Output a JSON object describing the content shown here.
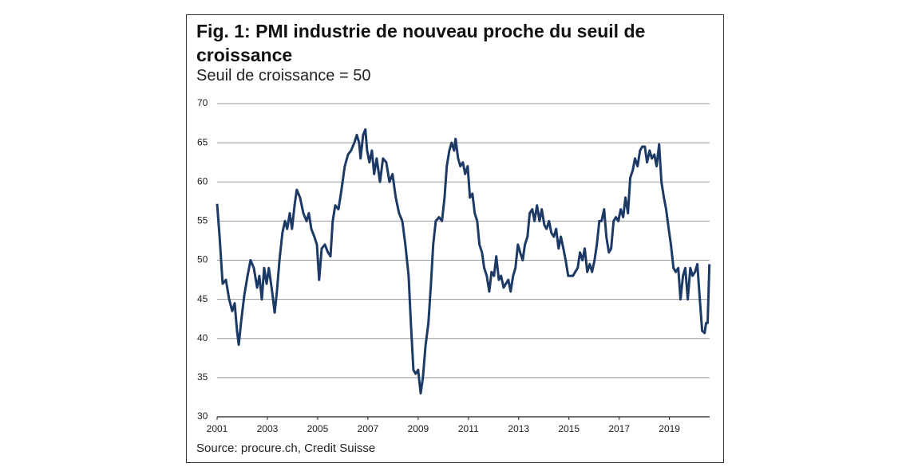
{
  "chart_data": {
    "type": "line",
    "title": "Fig. 1: PMI industrie de nouveau proche du seuil de croissance",
    "subtitle": "Seuil de croissance = 50",
    "source": "Source: procure.ch, Credit Suisse",
    "xlim": [
      2001,
      2020.6
    ],
    "xticks": [
      2001,
      2003,
      2005,
      2007,
      2009,
      2011,
      2013,
      2015,
      2017,
      2019
    ],
    "ylim": [
      30,
      70
    ],
    "yticks": [
      30,
      35,
      40,
      45,
      50,
      55,
      60,
      65,
      70
    ],
    "grid": true,
    "x": [
      2001.0,
      2001.1,
      2001.22,
      2001.35,
      2001.48,
      2001.6,
      2001.7,
      2001.79,
      2001.86,
      2001.95,
      2002.08,
      2002.21,
      2002.33,
      2002.46,
      2002.59,
      2002.68,
      2002.78,
      2002.87,
      2002.97,
      2003.06,
      2003.19,
      2003.29,
      2003.38,
      2003.48,
      2003.6,
      2003.7,
      2003.79,
      2003.89,
      2003.98,
      2004.08,
      2004.17,
      2004.3,
      2004.43,
      2004.56,
      2004.65,
      2004.75,
      2004.87,
      2004.97,
      2005.06,
      2005.16,
      2005.29,
      2005.41,
      2005.51,
      2005.6,
      2005.7,
      2005.83,
      2005.95,
      2006.08,
      2006.21,
      2006.33,
      2006.46,
      2006.56,
      2006.65,
      2006.71,
      2006.81,
      2006.9,
      2006.97,
      2007.06,
      2007.16,
      2007.25,
      2007.35,
      2007.48,
      2007.6,
      2007.73,
      2007.86,
      2007.98,
      2008.11,
      2008.24,
      2008.37,
      2008.49,
      2008.62,
      2008.71,
      2008.81,
      2008.9,
      2009.0,
      2009.1,
      2009.19,
      2009.29,
      2009.41,
      2009.51,
      2009.6,
      2009.7,
      2009.83,
      2009.95,
      2010.05,
      2010.14,
      2010.24,
      2010.33,
      2010.43,
      2010.49,
      2010.59,
      2010.68,
      2010.78,
      2010.87,
      2010.97,
      2011.06,
      2011.16,
      2011.25,
      2011.35,
      2011.44,
      2011.54,
      2011.63,
      2011.73,
      2011.83,
      2011.92,
      2012.02,
      2012.11,
      2012.21,
      2012.3,
      2012.4,
      2012.49,
      2012.59,
      2012.68,
      2012.78,
      2012.87,
      2012.97,
      2013.06,
      2013.16,
      2013.25,
      2013.35,
      2013.44,
      2013.54,
      2013.63,
      2013.73,
      2013.83,
      2013.92,
      2014.02,
      2014.11,
      2014.21,
      2014.3,
      2014.4,
      2014.49,
      2014.59,
      2014.68,
      2014.78,
      2014.87,
      2014.97,
      2015.06,
      2015.16,
      2015.25,
      2015.35,
      2015.44,
      2015.54,
      2015.63,
      2015.73,
      2015.83,
      2015.92,
      2016.02,
      2016.11,
      2016.21,
      2016.3,
      2016.4,
      2016.49,
      2016.59,
      2016.68,
      2016.78,
      2016.87,
      2016.97,
      2017.06,
      2017.16,
      2017.25,
      2017.35,
      2017.44,
      2017.54,
      2017.63,
      2017.73,
      2017.83,
      2017.92,
      2018.02,
      2018.11,
      2018.21,
      2018.3,
      2018.4,
      2018.49,
      2018.59,
      2018.68,
      2018.78,
      2018.87,
      2018.97,
      2019.06,
      2019.16,
      2019.25,
      2019.35,
      2019.44,
      2019.54,
      2019.63,
      2019.73,
      2019.83,
      2019.92,
      2020.02,
      2020.11,
      2020.21,
      2020.3,
      2020.4,
      2020.46,
      2020.52,
      2020.59
    ],
    "series": [
      {
        "color": "#1d3a66",
        "values": [
          57.2,
          53,
          47,
          47.5,
          45,
          43.5,
          44.5,
          41,
          39.2,
          42,
          45.5,
          48,
          50,
          49,
          46.5,
          48,
          45,
          49,
          47,
          49,
          46,
          43.3,
          46,
          50,
          53.5,
          55,
          54,
          56,
          54,
          57,
          59,
          58,
          56,
          55,
          56,
          54,
          53,
          52,
          47.5,
          51.5,
          52,
          51,
          50.5,
          55,
          57,
          56.5,
          59,
          62,
          63.5,
          64,
          65,
          66,
          65,
          63,
          66,
          66.7,
          64,
          62.5,
          64,
          61,
          63,
          60,
          63,
          62.5,
          60,
          61,
          58,
          56,
          55,
          52,
          48,
          42,
          36,
          35.5,
          36,
          33,
          35,
          39,
          42,
          47,
          52,
          55,
          55.5,
          55,
          58,
          62,
          64,
          65,
          64,
          65.5,
          63,
          62,
          62.5,
          61,
          62,
          58,
          58.5,
          56,
          55,
          52,
          51,
          49,
          48,
          46,
          48.5,
          48,
          50.5,
          47.5,
          48,
          46.5,
          47,
          47.5,
          46,
          48,
          49,
          52,
          51,
          50,
          52,
          53,
          56,
          56.5,
          55,
          57,
          55,
          56.5,
          54.5,
          54,
          55,
          53.5,
          53,
          54,
          51.5,
          53,
          51.5,
          50,
          48,
          48,
          48,
          48.5,
          49,
          51,
          50,
          51.5,
          48.5,
          49.5,
          48.5,
          50,
          52,
          55,
          55,
          56.5,
          53,
          51,
          51.5,
          55,
          55.5,
          55,
          56.5,
          55.5,
          58,
          56,
          60.5,
          61.5,
          63,
          62,
          64,
          64.5,
          64.5,
          62.5,
          64,
          63,
          63.5,
          62,
          64.8,
          60,
          58,
          56.5,
          54,
          52,
          49,
          48.5,
          49,
          45,
          48,
          49,
          45,
          49,
          48,
          48.5,
          49.5,
          45,
          41,
          40.7,
          42,
          42,
          49.5
        ]
      }
    ]
  }
}
